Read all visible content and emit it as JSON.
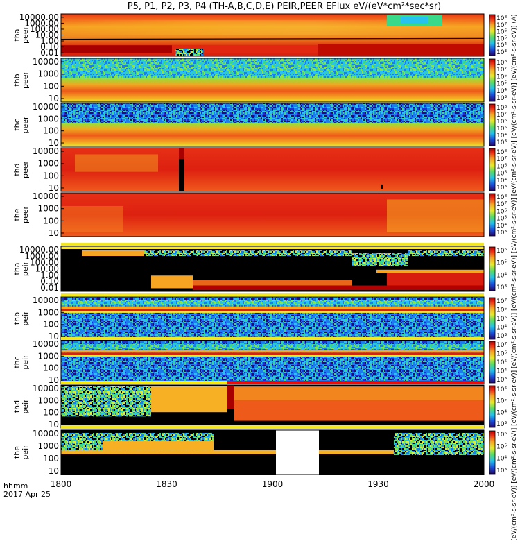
{
  "chart_data": {
    "type": "heatmap",
    "title": "P5, P1, P2, P3, P4 (TH-A,B,C,D,E) PEIR,PEER EFlux eV/(eV*cm²*sec*sr)",
    "x_axis": {
      "ticks": [
        "1800",
        "1830",
        "1900",
        "1930",
        "2000"
      ],
      "label_line1": "hhmm",
      "label_line2": "2017 Apr 25"
    },
    "colorbar_label": "[eV/(cm²-s-sr-eV)] [eV/(cm²-s-sr-eV)] [eV/(cm²-s-sr-eV)] [eV/(cm²-s-sr-eV)] [eV/(cm²-s-sr-eV)] [eV/(cm²-s-sr-eV)] [eV/(cm²-s-sr-eV)] [eV/(cm²-s-sr-eV)] [eV/(cm²-s-sr-eV)] (A)",
    "panels": [
      {
        "probe": "tha",
        "species": "peer",
        "yticks": [
          "10000.00",
          "1000.00",
          "100.00",
          "10.00",
          "1.00",
          "0.10",
          "0.01"
        ],
        "cbticks": [
          "10⁸",
          "10⁷",
          "10⁶",
          "10⁵",
          "10⁴",
          "10³"
        ]
      },
      {
        "probe": "thb",
        "species": "peer",
        "yticks": [
          "10000",
          "1000",
          "100",
          "10"
        ],
        "cbticks": [
          "10⁸",
          "10⁷",
          "10⁶",
          "10⁵",
          "10⁴",
          "10³"
        ]
      },
      {
        "probe": "thc",
        "species": "peer",
        "yticks": [
          "10000",
          "1000",
          "100",
          "10"
        ],
        "cbticks": [
          "10⁸",
          "10⁷",
          "10⁶",
          "10⁵",
          "10⁴",
          "10³"
        ]
      },
      {
        "probe": "thd",
        "species": "peer",
        "yticks": [
          "10000",
          "1000",
          "100",
          "10"
        ],
        "cbticks": [
          "10⁸",
          "10⁷",
          "10⁶",
          "10⁵",
          "10⁴",
          "10³"
        ]
      },
      {
        "probe": "the",
        "species": "peer",
        "yticks": [
          "10000",
          "1000",
          "100",
          "10"
        ],
        "cbticks": [
          "10⁸",
          "10⁷",
          "10⁶",
          "10⁵",
          "10⁴",
          "10³"
        ]
      },
      {
        "probe": "tha",
        "species": "peir",
        "yticks": [
          "10000.00",
          "1000.00",
          "100.00",
          "10.00",
          "1.00",
          "0.10",
          "0.01"
        ],
        "cbticks": [
          "10⁶",
          "10⁵",
          "10⁴",
          "10³"
        ]
      },
      {
        "probe": "thb",
        "species": "peir",
        "yticks": [
          "10000",
          "1000",
          "100",
          "10"
        ],
        "cbticks": [
          "10⁷",
          "10⁶",
          "10⁵",
          "10⁴",
          "10³"
        ]
      },
      {
        "probe": "thc",
        "species": "peir",
        "yticks": [
          "10000",
          "1000",
          "100",
          "10"
        ],
        "cbticks": [
          "10⁷",
          "10⁶",
          "10⁵",
          "10⁴",
          "10³"
        ]
      },
      {
        "probe": "thd",
        "species": "peir",
        "yticks": [
          "10000",
          "1000",
          "100",
          "10"
        ],
        "cbticks": [
          "10⁶",
          "10⁵",
          "10⁴",
          "10³"
        ]
      },
      {
        "probe": "the",
        "species": "peir",
        "yticks": [
          "10000",
          "1000",
          "100",
          "10"
        ],
        "cbticks": [
          "10⁶",
          "10⁵",
          "10⁴",
          "10³"
        ]
      }
    ],
    "colormap": [
      "#2a0a6e",
      "#1b2fd6",
      "#1d7bf0",
      "#27c3ee",
      "#39d98a",
      "#8ee43a",
      "#e6e82a",
      "#f7b023",
      "#f05a1c",
      "#dc1f10",
      "#b30000"
    ],
    "background_colors": {
      "fill_absent": "#000000",
      "gap_band": "#ffffff",
      "strip": "#f4e71a",
      "strip_red": "#e01010"
    }
  }
}
